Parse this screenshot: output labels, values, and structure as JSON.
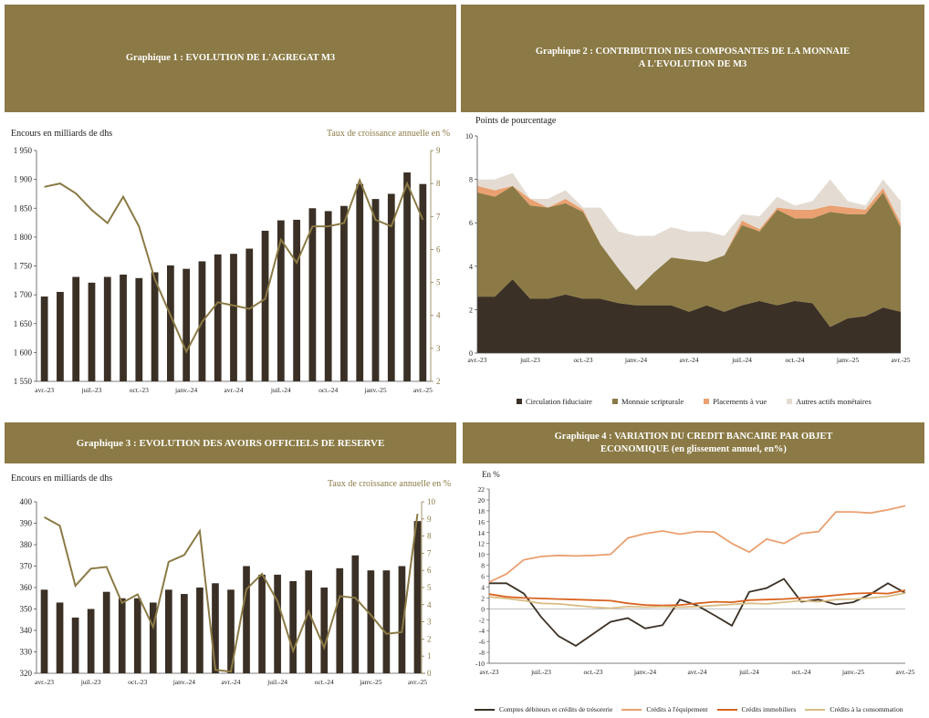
{
  "headers": {
    "g1": "Graphique 1 : EVOLUTION DE L'AGREGAT M3",
    "g2_line1": "Graphique 2 : CONTRIBUTION DES COMPOSANTES DE  LA MONNAIE",
    "g2_line2": "A L'EVOLUTION DE M3",
    "g3": "Graphique 3 : EVOLUTION DES AVOIRS OFFICIELS DE RESERVE",
    "g4_line1": "Graphique 4 : VARIATION DU CREDIT BANCAIRE PAR OBJET",
    "g4_line2": "ECONOMIQUE (en glissement annuel, en%)"
  },
  "colors": {
    "header_bg": "#8b7a45",
    "bar": "#3b3025",
    "gold_line": "#8b7a45",
    "circulation": "#3b3025",
    "monnaie": "#8b7a45",
    "placements": "#eaa070",
    "autres": "#e4dcd2",
    "g4_comptes": "#3b3025",
    "g4_equipement": "#eaa070",
    "g4_immobiliers": "#d96420",
    "g4_consommation": "#d9bd85"
  },
  "chart_data": [
    {
      "id": "g1",
      "type": "bar",
      "title": "Graphique 1 : EVOLUTION DE L'AGREGAT M3",
      "ylabel": "Encours en milliards de dhs",
      "y2label": "Taux de croissance annuelle en %",
      "ylim": [
        1550,
        1950
      ],
      "yticks": [
        1550,
        1600,
        1650,
        1700,
        1750,
        1800,
        1850,
        1900,
        1950
      ],
      "ytick_labels": [
        "1 550",
        "1 600",
        "1 650",
        "1 700",
        "1 750",
        "1 800",
        "1 850",
        "1 900",
        "1 950"
      ],
      "y2lim": [
        2,
        9
      ],
      "y2ticks": [
        2,
        3,
        4,
        5,
        6,
        7,
        8,
        9
      ],
      "xtick_labels": [
        "avr.-23",
        "juil.-23",
        "oct.-23",
        "janv.-24",
        "avr.-24",
        "juil.-24",
        "oct.-24",
        "janv.-25",
        "avr.-25"
      ],
      "xtick_every": 3,
      "series": [
        {
          "kind": "bar",
          "axis": "left",
          "values": [
            1697,
            1705,
            1731,
            1721,
            1731,
            1735,
            1729,
            1739,
            1751,
            1745,
            1758,
            1770,
            1771,
            1780,
            1811,
            1829,
            1830,
            1850,
            1845,
            1854,
            1892,
            1866,
            1875,
            1912,
            1892
          ]
        },
        {
          "kind": "line",
          "axis": "right",
          "values": [
            7.9,
            8.0,
            7.7,
            7.2,
            6.8,
            7.6,
            6.7,
            5.1,
            4.0,
            2.9,
            3.8,
            4.4,
            4.3,
            4.2,
            4.5,
            6.3,
            5.6,
            6.7,
            6.7,
            6.8,
            8.1,
            6.9,
            6.7,
            8.0,
            6.9
          ]
        }
      ]
    },
    {
      "id": "g2",
      "type": "area",
      "title": "Graphique 2 : CONTRIBUTION DES COMPOSANTES DE  LA MONNAIE A L'EVOLUTION DE M3",
      "ylabel": "Points de pourcentage",
      "ylim": [
        0,
        10
      ],
      "yticks": [
        0,
        2,
        4,
        6,
        8,
        10
      ],
      "xtick_labels": [
        "avr.-23",
        "juil.-23",
        "oct.-23",
        "janv.-24",
        "avr.-24",
        "juil.-24",
        "oct.-24",
        "janv.-25",
        "avr.-25"
      ],
      "xtick_every": 3,
      "series": [
        {
          "name": "Circulation fiduciaire",
          "values": [
            2.6,
            2.6,
            3.4,
            2.5,
            2.5,
            2.7,
            2.5,
            2.5,
            2.3,
            2.2,
            2.2,
            2.2,
            1.9,
            2.2,
            1.9,
            2.2,
            2.4,
            2.2,
            2.4,
            2.3,
            1.2,
            1.6,
            1.7,
            2.1,
            1.9
          ]
        },
        {
          "name": "Monnaie scripturale",
          "values": [
            4.8,
            4.6,
            4.3,
            4.3,
            4.2,
            4.2,
            4.0,
            2.5,
            1.6,
            0.7,
            1.5,
            2.2,
            2.4,
            2.0,
            2.6,
            3.7,
            3.2,
            4.4,
            3.8,
            3.9,
            5.3,
            4.8,
            4.7,
            5.3,
            3.9
          ]
        },
        {
          "name": "Placements à vue",
          "values": [
            0.3,
            0.3,
            0.0,
            0.3,
            0.0,
            0.2,
            0.1,
            0.0,
            0.0,
            0.0,
            0.0,
            0.0,
            0.0,
            0.0,
            0.0,
            0.2,
            0.1,
            0.1,
            0.4,
            0.4,
            0.3,
            0.3,
            0.2,
            0.2,
            0.2
          ]
        },
        {
          "name": "Autres actifs monétaires",
          "values": [
            0.3,
            0.5,
            0.6,
            0.0,
            0.4,
            0.4,
            0.1,
            1.7,
            1.7,
            2.5,
            1.7,
            1.4,
            1.3,
            1.4,
            0.9,
            0.3,
            0.6,
            0.5,
            0.2,
            0.4,
            1.2,
            0.3,
            0.2,
            0.4,
            1.0
          ]
        }
      ]
    },
    {
      "id": "g3",
      "type": "bar",
      "title": "Graphique 3 : EVOLUTION DES AVOIRS OFFICIELS DE RESERVE",
      "ylabel": "Encours en milliards de dhs",
      "y2label": "Taux de croissance annuelle en %",
      "ylim": [
        320,
        400
      ],
      "yticks": [
        320,
        330,
        340,
        350,
        360,
        370,
        380,
        390,
        400
      ],
      "y2lim": [
        0,
        10
      ],
      "y2ticks": [
        0,
        1,
        2,
        3,
        4,
        5,
        6,
        7,
        8,
        9,
        10
      ],
      "xtick_labels": [
        "avr.-23",
        "juil.-23",
        "oct.-23",
        "janv.-24",
        "avr.-24",
        "juil.-24",
        "oct.-24",
        "janv.-25",
        "avr.-25"
      ],
      "xtick_every": 3,
      "series": [
        {
          "kind": "bar",
          "axis": "left",
          "values": [
            359,
            353,
            346,
            350,
            358,
            355,
            355,
            353,
            359,
            357,
            360,
            362,
            359,
            370,
            366,
            366,
            363,
            368,
            360,
            369,
            375,
            368,
            368,
            370,
            391
          ]
        },
        {
          "kind": "line",
          "axis": "right",
          "values": [
            9.1,
            8.6,
            5.1,
            6.1,
            6.2,
            4.1,
            4.6,
            2.7,
            6.5,
            6.9,
            8.3,
            0.2,
            0.1,
            4.9,
            5.8,
            4.2,
            1.3,
            3.6,
            1.5,
            4.5,
            4.4,
            3.4,
            2.3,
            2.4,
            9.3
          ]
        }
      ]
    },
    {
      "id": "g4",
      "type": "line",
      "title": "Graphique 4 : VARIATION DU CREDIT BANCAIRE PAR OBJET ECONOMIQUE (en glissement annuel, en%)",
      "ylabel": "En %",
      "ylim": [
        -10,
        22
      ],
      "yticks": [
        -10,
        -8,
        -6,
        -4,
        -2,
        0,
        2,
        4,
        6,
        8,
        10,
        12,
        14,
        16,
        18,
        20,
        22
      ],
      "xtick_labels": [
        "avr.-23",
        "juil.-23",
        "oct.-23",
        "janv.-24",
        "avr.-24",
        "juil.-24",
        "oct.-24",
        "janv.-25",
        "avr.-25"
      ],
      "xtick_every": 3,
      "series": [
        {
          "name": "Comptes débiteurs et crédits de trésorerie",
          "values": [
            4.7,
            4.7,
            2.8,
            -1.5,
            -5.0,
            -6.8,
            -4.6,
            -2.4,
            -1.7,
            -3.6,
            -3.0,
            1.7,
            0.6,
            -1.2,
            -3.1,
            3.1,
            3.8,
            5.5,
            1.3,
            1.7,
            0.8,
            1.2,
            2.7,
            4.7,
            2.9
          ]
        },
        {
          "name": "Crédits à l'équipement",
          "values": [
            4.9,
            6.4,
            9.0,
            9.6,
            9.8,
            9.7,
            9.8,
            10.0,
            13.0,
            13.8,
            14.3,
            13.7,
            14.2,
            14.1,
            12.0,
            10.4,
            12.8,
            12.0,
            13.8,
            14.2,
            17.8,
            17.8,
            17.6,
            18.2,
            18.9
          ]
        },
        {
          "name": "Crédits immobiliers",
          "values": [
            2.7,
            2.2,
            2.0,
            1.9,
            1.8,
            1.7,
            1.6,
            1.5,
            1.0,
            0.7,
            0.6,
            0.7,
            1.0,
            1.3,
            1.2,
            1.6,
            1.7,
            1.8,
            2.0,
            2.2,
            2.5,
            2.8,
            2.9,
            2.8,
            3.4
          ]
        },
        {
          "name": "Crédits à la consommation",
          "values": [
            2.2,
            1.9,
            1.5,
            1.0,
            0.9,
            0.6,
            0.3,
            0.1,
            0.4,
            0.3,
            0.4,
            0.3,
            0.4,
            0.6,
            0.8,
            1.0,
            0.9,
            1.2,
            1.5,
            1.3,
            1.7,
            1.8,
            2.0,
            2.3,
            2.9
          ]
        }
      ]
    }
  ]
}
